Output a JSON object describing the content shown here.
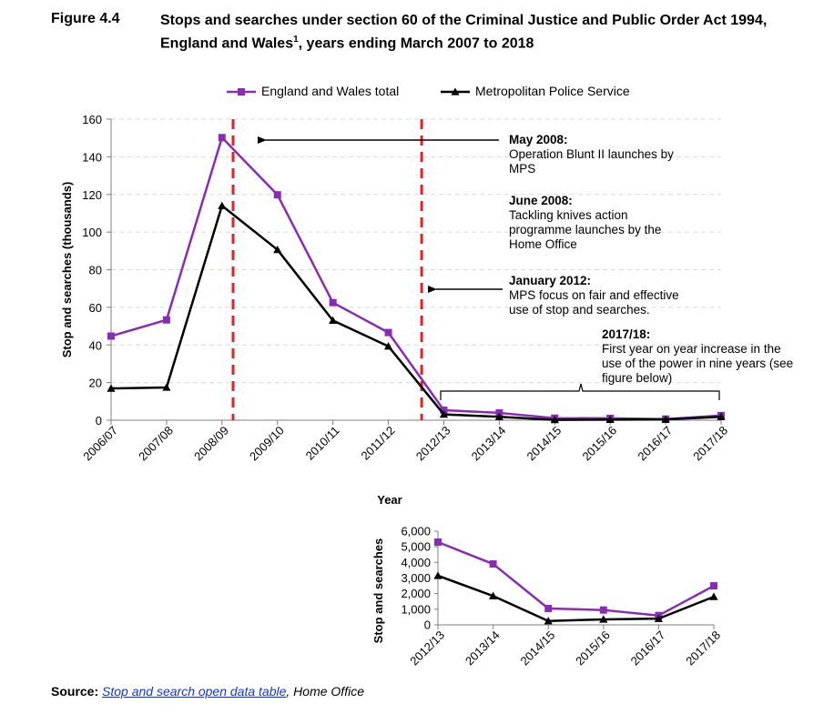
{
  "header": {
    "figure_label": "Figure 4.4",
    "title_main": "Stops and searches under section 60 of the Criminal Justice and Public Order Act 1994, England and Wales",
    "title_sup": "1",
    "title_end": ", years ending March 2007 to 2018"
  },
  "colors": {
    "england": "#8b2bb5",
    "mps": "#000000",
    "marker_line": "#e8201f",
    "grid": "#d9d9d9"
  },
  "chart_data": [
    {
      "type": "line",
      "categories": [
        "2006/07",
        "2007/08",
        "2008/09",
        "2009/10",
        "2010/11",
        "2011/12",
        "2012/13",
        "2013/14",
        "2014/15",
        "2015/16",
        "2016/17",
        "2017/18"
      ],
      "series": [
        {
          "name": "England and Wales total",
          "marker": "square",
          "values": [
            44.7,
            53.3,
            150.2,
            119.8,
            62.5,
            46.6,
            5.3,
            3.9,
            1.1,
            1.0,
            0.6,
            2.5
          ]
        },
        {
          "name": "Metropolitan Police Service",
          "marker": "triangle",
          "values": [
            16.9,
            17.4,
            114.0,
            90.6,
            53.0,
            39.3,
            3.1,
            1.8,
            0.2,
            0.3,
            0.4,
            1.8
          ]
        }
      ],
      "ylabel": "Stop and searches (thousands)",
      "xlabel": "Year",
      "ylim": [
        0,
        160
      ],
      "yticks": [
        0,
        20,
        40,
        60,
        80,
        100,
        120,
        140,
        160
      ],
      "legend_position": "top",
      "grid": "horizontal dashed",
      "vertical_markers": [
        {
          "after_category": "2008/09",
          "fraction_to_next": 0.2
        },
        {
          "after_category": "2011/12",
          "fraction_to_next": 0.6
        }
      ],
      "annotations": [
        {
          "title": "May 2008:",
          "lines": [
            "Operation Blunt II launches by",
            "MPS"
          ]
        },
        {
          "title": "June 2008:",
          "lines": [
            "Tackling knives action",
            "programme launches by the",
            "Home Office"
          ]
        },
        {
          "title": "January 2012:",
          "lines": [
            "MPS focus on fair and effective",
            "use of stop and searches."
          ]
        },
        {
          "title": "2017/18:",
          "lines": [
            "First year on year increase in the",
            "use of the power in nine years (see",
            "figure below)"
          ]
        }
      ]
    },
    {
      "type": "line",
      "categories": [
        "2012/13",
        "2013/14",
        "2014/15",
        "2015/16",
        "2016/17",
        "2017/18"
      ],
      "series": [
        {
          "name": "England and Wales total",
          "marker": "square",
          "values": [
            5300,
            3900,
            1050,
            950,
            600,
            2500
          ]
        },
        {
          "name": "Metropolitan Police Service",
          "marker": "triangle",
          "values": [
            3150,
            1850,
            250,
            350,
            400,
            1800
          ]
        }
      ],
      "ylabel": "Stop and searches",
      "ylim": [
        0,
        6000
      ],
      "yticks": [
        0,
        1000,
        2000,
        3000,
        4000,
        5000,
        6000
      ],
      "ytick_labels": [
        "0",
        "1,000",
        "2,000",
        "3,000",
        "4,000",
        "5,000",
        "6,000"
      ]
    }
  ],
  "source": {
    "label": "Source:",
    "link_text": "Stop and search open data table",
    "suffix": ", Home Office"
  }
}
